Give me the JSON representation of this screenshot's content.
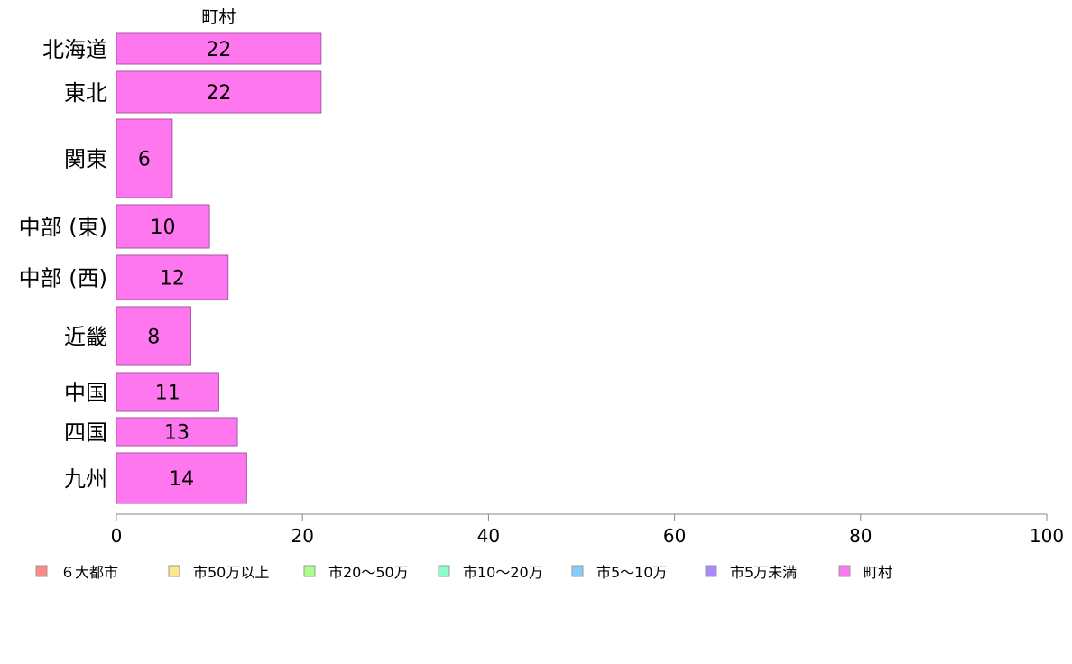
{
  "chart_data": {
    "type": "bar",
    "orientation": "horizontal",
    "stacked": true,
    "categories": [
      "北海道",
      "東北",
      "関東",
      "中部 (東)",
      "中部 (西)",
      "近畿",
      "中国",
      "四国",
      "九州"
    ],
    "series": [
      {
        "name": "６大都市",
        "values": [
          0,
          0,
          0,
          0,
          0,
          0,
          0,
          0,
          0
        ],
        "color": "#ff8888"
      },
      {
        "name": "市50万以上",
        "values": [
          0,
          0,
          0,
          0,
          0,
          0,
          0,
          0,
          0
        ],
        "color": "#ffe88a"
      },
      {
        "name": "市20〜50万",
        "values": [
          0,
          0,
          0,
          0,
          0,
          0,
          0,
          0,
          0
        ],
        "color": "#aaff88"
      },
      {
        "name": "市10〜20万",
        "values": [
          0,
          0,
          0,
          0,
          0,
          0,
          0,
          0,
          0
        ],
        "color": "#88ffcc"
      },
      {
        "name": "市5〜10万",
        "values": [
          0,
          0,
          0,
          0,
          0,
          0,
          0,
          0,
          0
        ],
        "color": "#88ccff"
      },
      {
        "name": "市5万未満",
        "values": [
          0,
          0,
          0,
          0,
          0,
          0,
          0,
          0,
          0
        ],
        "color": "#aa88ff"
      },
      {
        "name": "町村",
        "values": [
          22,
          22,
          6,
          10,
          12,
          8,
          11,
          13,
          14
        ],
        "color": "#ff77ee"
      }
    ],
    "data_labels": [
      "22",
      "22",
      "6",
      "10",
      "12",
      "8",
      "11",
      "13",
      "14"
    ],
    "top_series_label": "町村",
    "xlim": [
      0,
      100
    ],
    "xticks": [
      0,
      20,
      40,
      60,
      80,
      100
    ],
    "grid": false,
    "legend": "bottom"
  }
}
